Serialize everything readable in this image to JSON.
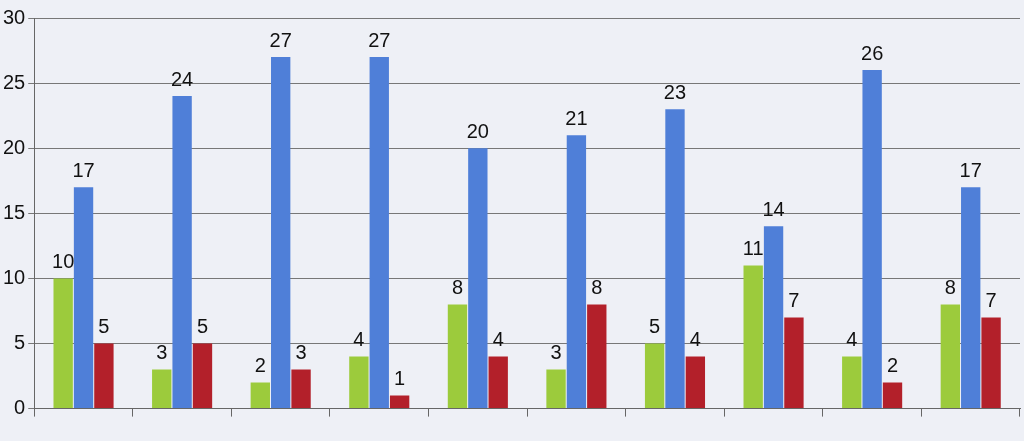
{
  "chart_data": {
    "type": "bar",
    "categories": [
      null,
      null,
      null,
      null,
      null,
      null,
      null,
      null,
      null,
      null
    ],
    "series": [
      {
        "color": "#9ccb3c",
        "values": [
          10,
          3,
          2,
          4,
          8,
          3,
          5,
          11,
          4,
          8
        ]
      },
      {
        "color": "#4f7fd8",
        "values": [
          17,
          24,
          27,
          27,
          20,
          21,
          23,
          14,
          26,
          17
        ]
      },
      {
        "color": "#b3202a",
        "values": [
          5,
          5,
          3,
          1,
          4,
          8,
          4,
          7,
          2,
          7
        ]
      }
    ],
    "ylim": [
      0,
      30
    ],
    "yticks": [
      0,
      5,
      10,
      15,
      20,
      25,
      30
    ],
    "grid": "y",
    "data_labels": true,
    "legend": false
  }
}
